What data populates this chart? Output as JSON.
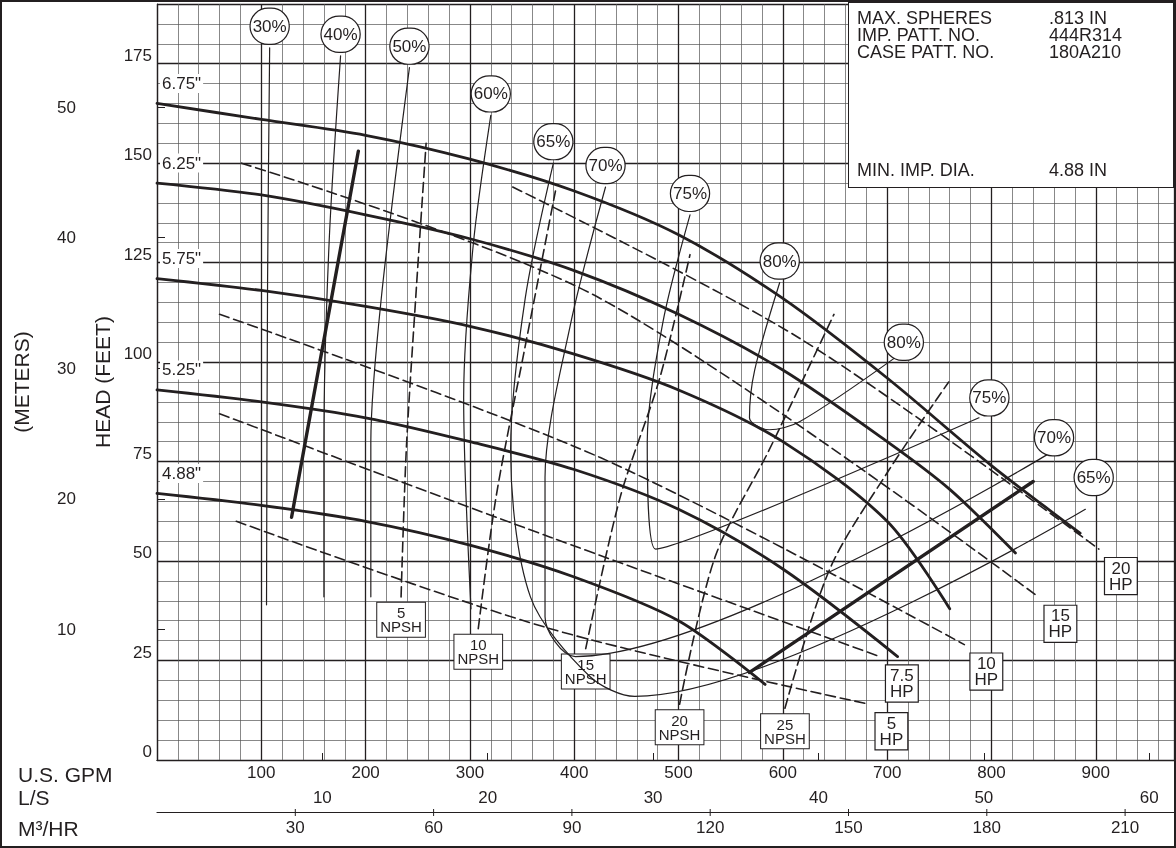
{
  "chart_data": {
    "type": "line",
    "xlabel": "U.S. GPM",
    "ylabel": "HEAD (FEET)",
    "y2label": "(METERS)",
    "x2label": "L/S",
    "xlim": [
      0,
      975
    ],
    "xticks": [
      100,
      200,
      300,
      400,
      500,
      600,
      700,
      800,
      900
    ],
    "x2lim": [
      0,
      61.5
    ],
    "x2ticks": [
      10,
      20,
      30,
      40,
      50,
      60
    ],
    "ylim": [
      0,
      190
    ],
    "yticks": [
      0,
      25,
      50,
      75,
      100,
      125,
      150,
      175
    ],
    "y2lim": [
      0,
      57.9
    ],
    "y2ticks": [
      10,
      20,
      30,
      40,
      50
    ],
    "grid": true,
    "series": [
      {
        "name": "6.75\"",
        "color": "#231f20",
        "line_style": "solid",
        "x": [
          0,
          100,
          200,
          300,
          400,
          500,
          600,
          700,
          800,
          885
        ],
        "values": [
          165,
          161,
          157,
          151,
          143,
          132,
          116,
          96,
          74,
          57
        ]
      },
      {
        "name": "6.25\"",
        "color": "#231f20",
        "line_style": "solid",
        "x": [
          0,
          100,
          200,
          300,
          400,
          500,
          600,
          700,
          760,
          823
        ],
        "values": [
          145,
          142,
          137,
          131,
          123,
          112,
          98,
          80,
          68,
          52
        ]
      },
      {
        "name": "5.75\"",
        "color": "#231f20",
        "line_style": "solid",
        "x": [
          0,
          100,
          200,
          300,
          400,
          500,
          600,
          700,
          760
        ],
        "values": [
          121,
          118,
          114,
          109,
          102,
          93,
          80,
          60,
          38
        ]
      },
      {
        "name": "5.25\"",
        "color": "#231f20",
        "line_style": "solid",
        "x": [
          0,
          100,
          200,
          300,
          400,
          500,
          600,
          710
        ],
        "values": [
          93,
          90,
          86,
          80,
          73,
          63,
          48,
          26
        ]
      },
      {
        "name": "4.88\"",
        "color": "#231f20",
        "line_style": "solid",
        "x": [
          0,
          100,
          200,
          300,
          400,
          500,
          583
        ],
        "values": [
          67,
          64,
          60,
          54,
          46,
          35,
          19
        ]
      },
      {
        "color": "#231f20",
        "line_style": "solid",
        "x": [
          129,
          193
        ],
        "values": [
          61,
          153
        ]
      },
      {
        "color": "#231f20",
        "line_style": "solid",
        "x": [
          568,
          840
        ],
        "values": [
          22,
          70
        ]
      },
      {
        "name": "30%",
        "color": "#231f20",
        "line_style": "solid",
        "x": [
          108,
          106,
          105
        ],
        "values": [
          179,
          120,
          39
        ]
      },
      {
        "name": "40%",
        "color": "#231f20",
        "line_style": "solid",
        "x": [
          176,
          165,
          160,
          160
        ],
        "values": [
          177,
          130,
          80,
          41
        ]
      },
      {
        "name": "50%",
        "color": "#231f20",
        "line_style": "solid",
        "x": [
          242,
          215,
          205,
          205
        ],
        "values": [
          174,
          116,
          80,
          41
        ]
      },
      {
        "name": "60%",
        "color": "#231f20",
        "line_style": "solid",
        "x": [
          320,
          303,
          294,
          301
        ],
        "values": [
          162,
          129,
          91,
          38
        ]
      },
      {
        "name": "65%",
        "color": "#231f20",
        "line_style": "solid",
        "x": [
          380,
          353,
          339,
          358,
          415,
          458,
          890
        ],
        "values": [
          150,
          116,
          78,
          41,
          21,
          16,
          63
        ]
      },
      {
        "name": "70%",
        "color": "#231f20",
        "line_style": "solid",
        "x": [
          430,
          396,
          372,
          372,
          401,
          855
        ],
        "values": [
          144,
          109,
          71,
          36,
          26,
          77
        ]
      },
      {
        "name": "75%",
        "color": "#231f20",
        "line_style": "solid",
        "x": [
          511,
          485,
          470,
          478,
          788
        ],
        "values": [
          137,
          110,
          80,
          53,
          86
        ]
      },
      {
        "name": "80%",
        "color": "#231f20",
        "line_style": "solid",
        "x": [
          597,
          573,
          568,
          587,
          616,
          707
        ],
        "values": [
          120,
          98,
          86,
          83,
          85,
          101
        ]
      },
      {
        "name": "5 NPSH",
        "color": "#231f20",
        "line_style": "dashed",
        "x": [
          234,
          239,
          248,
          258
        ],
        "values": [
          41,
          78,
          116,
          155
        ]
      },
      {
        "name": "10 NPSH",
        "color": "#231f20",
        "line_style": "dashed",
        "x": [
          308,
          325,
          353,
          382
        ],
        "values": [
          33,
          66,
          104,
          143
        ]
      },
      {
        "name": "15 NPSH",
        "color": "#231f20",
        "line_style": "dashed",
        "x": [
          411,
          444,
          482,
          511
        ],
        "values": [
          28,
          66,
          96,
          127
        ]
      },
      {
        "name": "20 NPSH",
        "color": "#231f20",
        "line_style": "dashed",
        "x": [
          501,
          535,
          587,
          649
        ],
        "values": [
          14,
          51,
          78,
          112
        ]
      },
      {
        "name": "25 NPSH",
        "color": "#231f20",
        "line_style": "dashed",
        "x": [
          602,
          645,
          702,
          759
        ],
        "values": [
          13,
          48,
          73,
          95
        ]
      },
      {
        "name": "5 HP",
        "color": "#231f20",
        "line_style": "dashed",
        "x": [
          76,
          377,
          683
        ],
        "values": [
          60,
          33,
          14
        ]
      },
      {
        "name": "7.5 HP",
        "color": "#231f20",
        "line_style": "dashed",
        "x": [
          60,
          377,
          693
        ],
        "values": [
          87,
          56,
          26
        ]
      },
      {
        "name": "10 HP",
        "color": "#231f20",
        "line_style": "dashed",
        "x": [
          60,
          425,
          774
        ],
        "values": [
          112,
          76,
          29
        ]
      },
      {
        "name": "15 HP",
        "color": "#231f20",
        "line_style": "dashed",
        "x": [
          81,
          425,
          845
        ],
        "values": [
          150,
          116,
          41
        ]
      },
      {
        "name": "20 HP",
        "color": "#231f20",
        "line_style": "dashed",
        "x": [
          341,
          616,
          903
        ],
        "values": [
          144,
          106,
          53
        ]
      }
    ],
    "annotations": [
      "MAX. SPHERES",
      ".813 IN",
      "IMP. PATT. NO.",
      "444R314",
      "CASE PATT. NO.",
      "180A210",
      "MIN. IMP. DIA.",
      "4.88 IN",
      "M³/HR",
      "30",
      "60",
      "90",
      "120",
      "150",
      "180",
      "210",
      {
        "text": "80%",
        "x": 716,
        "y": 105
      },
      {
        "text": "75%",
        "x": 798,
        "y": 91
      },
      {
        "text": "70%",
        "x": 860,
        "y": 81
      },
      {
        "text": "65%",
        "x": 898,
        "y": 71
      }
    ]
  }
}
